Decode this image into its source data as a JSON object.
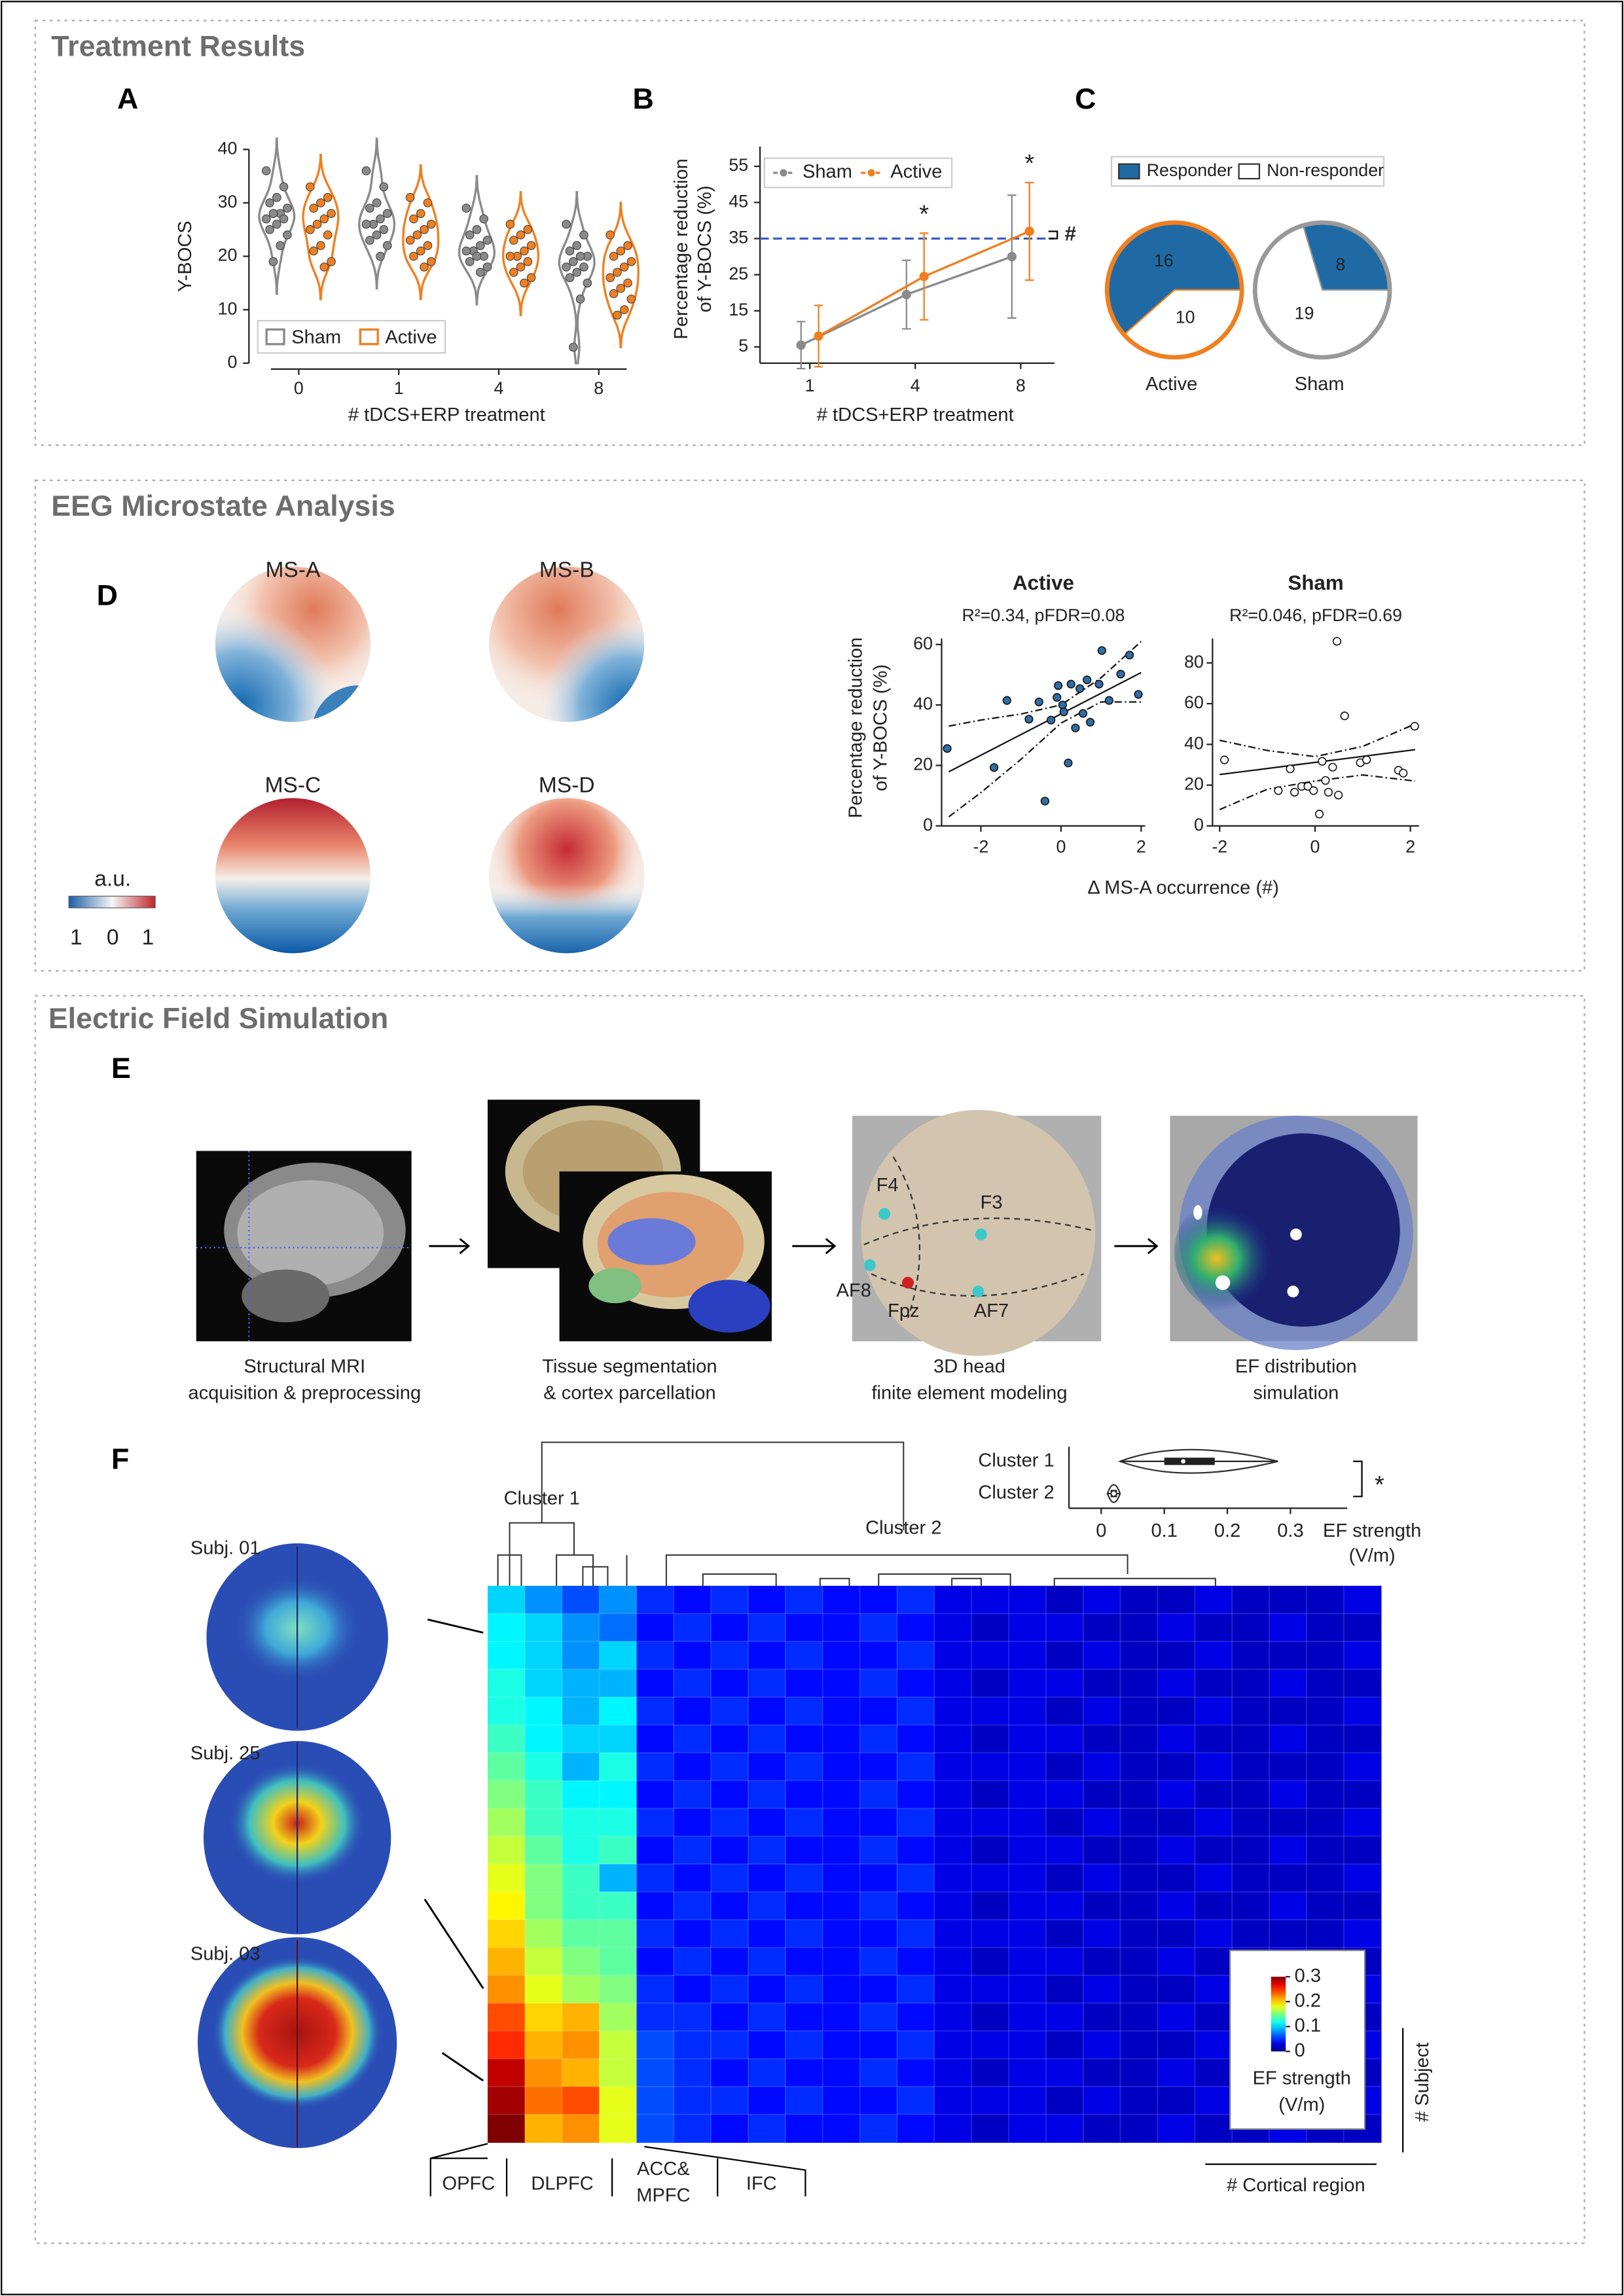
{
  "sections": [
    "Treatment Results",
    "EEG Microstate Analysis",
    "Electric Field Simulation"
  ],
  "panel_letters": [
    "A",
    "B",
    "C",
    "D",
    "E",
    "F"
  ],
  "microstates": {
    "maps": [
      {
        "name": "MS-A",
        "color": "#2b73b8"
      },
      {
        "name": "MS-B",
        "color": "#e0703a"
      },
      {
        "name": "MS-C",
        "color": "#f0b323"
      },
      {
        "name": "MS-D",
        "color": "#8e3c97"
      }
    ],
    "colorbar": {
      "label": "a.u.",
      "ticks": [
        "1",
        "0",
        "1"
      ]
    }
  },
  "pipeline": {
    "steps": [
      [
        "Structural MRI",
        "acquisition & preprocessing"
      ],
      [
        "Tissue segmentation",
        "& cortex parcellation"
      ],
      [
        "3D head",
        "finite element modeling"
      ],
      [
        "EF distribution",
        "simulation"
      ]
    ],
    "electrodes": [
      "F4",
      "F3",
      "AF8",
      "Fpz",
      "AF7"
    ]
  },
  "subjects": [
    "Subj. 01",
    "Subj. 25",
    "Subj. 03"
  ],
  "chart_data": [
    {
      "type": "violin",
      "ylabel": "Y-BOCS",
      "xlabel": "# tDCS+ERP treatment",
      "categories": [
        "0",
        "1",
        "4",
        "8"
      ],
      "ylim": [
        0,
        40
      ],
      "yticks": [
        0,
        10,
        20,
        30,
        40
      ],
      "legend": "lower left",
      "series": [
        {
          "name": "Sham",
          "color": "#8a8a8a",
          "values": [
            [
              36,
              33,
              31,
              30,
              29,
              28,
              28,
              27,
              27,
              26,
              25,
              24,
              22,
              19
            ],
            [
              36,
              33,
              30,
              29,
              28,
              27,
              26,
              26,
              25,
              24,
              23,
              22,
              20
            ],
            [
              29,
              27,
              25,
              24,
              23,
              22,
              21,
              21,
              20,
              20,
              19,
              18,
              17
            ],
            [
              26,
              24,
              22,
              21,
              20,
              20,
              19,
              18,
              18,
              17,
              16,
              15,
              12,
              3
            ]
          ]
        },
        {
          "name": "Active",
          "color": "#f07f1f",
          "values": [
            [
              33,
              31,
              30,
              29,
              28,
              27,
              26,
              25,
              24,
              22,
              21,
              19,
              18
            ],
            [
              31,
              30,
              28,
              27,
              26,
              25,
              24,
              23,
              22,
              21,
              20,
              19,
              18
            ],
            [
              26,
              25,
              24,
              23,
              22,
              21,
              20,
              20,
              19,
              18,
              17,
              16,
              15
            ],
            [
              24,
              22,
              21,
              20,
              19,
              18,
              17,
              16,
              15,
              14,
              13,
              12,
              10,
              9
            ]
          ]
        }
      ]
    },
    {
      "type": "line",
      "ylabel": [
        "Percentage reduction",
        "of Y-BOCS (%)"
      ],
      "xlabel": "# tDCS+ERP treatment",
      "categories": [
        "1",
        "4",
        "8"
      ],
      "ylim": [
        0.5,
        60.5
      ],
      "yticks": [
        5,
        15,
        25,
        35,
        45,
        55
      ],
      "legend": "upper left",
      "threshold": 35,
      "threshold_color": "#3a5fbf",
      "series": [
        {
          "name": "Sham",
          "color": "#8a8a8a",
          "values": [
            5.5,
            19.5,
            30
          ],
          "errors": [
            6.5,
            9.5,
            17
          ]
        },
        {
          "name": "Active",
          "color": "#f07f1f",
          "values": [
            8,
            24.5,
            37
          ],
          "errors": [
            8.5,
            12,
            13.5
          ],
          "markers": [
            null,
            "*",
            "*"
          ]
        }
      ],
      "bracket_label": "#"
    },
    {
      "type": "pie",
      "labels": [
        "Responder",
        "Non-responder"
      ],
      "colors": [
        "#1f6aa5",
        "#ffffff"
      ],
      "pies": [
        {
          "name": "Active",
          "color": "#f07f1f",
          "values": [
            16,
            10
          ]
        },
        {
          "name": "Sham",
          "color": "#999999",
          "values": [
            8,
            19
          ]
        }
      ]
    },
    {
      "type": "scatter",
      "title": "Active",
      "subtitle": "R²=0.34, pFDR=0.08",
      "ylabel": [
        "Percentage reduction",
        "of Y-BOCS (%)"
      ],
      "xlabel": "Δ MS-A occurrence (#)",
      "xlim": [
        -2.98,
        2.1
      ],
      "ylim": [
        0,
        62
      ],
      "xticks": [
        -2,
        0,
        2
      ],
      "yticks": [
        0,
        20,
        40,
        60
      ],
      "color": "#2f6ea5",
      "title_color": "#000000",
      "x": [
        -2.84,
        -1.35,
        -1.67,
        -0.8,
        -0.55,
        -0.4,
        -0.25,
        -0.1,
        -0.07,
        0.04,
        0.07,
        0.25,
        0.18,
        0.47,
        0.55,
        0.36,
        0.73,
        1.02,
        0.95,
        1.2,
        1.49,
        1.71,
        1.93,
        0.65
      ],
      "values": [
        25.6,
        41.5,
        19.3,
        35.3,
        41,
        8.2,
        35,
        42.5,
        46.4,
        40,
        37.7,
        46.9,
        20.8,
        45.4,
        37.2,
        32.4,
        34.3,
        58,
        46.9,
        41.5,
        50.2,
        56.5,
        43.5,
        48.3
      ],
      "fit": {
        "x": [
          -2.8,
          2
        ],
        "y": [
          17.9,
          50.7
        ]
      },
      "ci_x": [
        -2.8,
        -2,
        -1,
        0,
        1,
        2
      ],
      "ci_upper": [
        33,
        35,
        37,
        40,
        49,
        61
      ],
      "ci_lower": [
        3,
        11,
        22,
        34,
        41,
        41
      ]
    },
    {
      "type": "scatter",
      "title": "Sham",
      "subtitle": "R²=0.046, pFDR=0.69",
      "xlim": [
        -2.15,
        2.18
      ],
      "ylim": [
        0,
        92
      ],
      "xticks": [
        -2,
        0,
        2
      ],
      "yticks": [
        0,
        20,
        40,
        60,
        80
      ],
      "color": "#ffffff",
      "title_color": "#8a8a8a",
      "x": [
        -1.9,
        0.46,
        0.62,
        -0.52,
        -0.43,
        -0.28,
        -0.15,
        -0.03,
        0.22,
        0.15,
        0.37,
        0.09,
        0.49,
        -0.77,
        0.95,
        1.08,
        1.75,
        1.85,
        2.09,
        0.28
      ],
      "values": [
        32.4,
        90.6,
        54,
        28,
        16.5,
        19.4,
        19.4,
        17.3,
        22.3,
        31.7,
        28.8,
        5.8,
        15.1,
        17.3,
        31,
        32.4,
        27.3,
        25.9,
        48.9,
        16.5
      ],
      "fit": {
        "x": [
          -2,
          2.1
        ],
        "y": [
          25.2,
          37.4
        ]
      },
      "ci_x": [
        -2,
        -1,
        0,
        1,
        2.1
      ],
      "ci_upper": [
        42,
        37,
        34,
        39,
        50
      ],
      "ci_lower": [
        8,
        18,
        22,
        25,
        22
      ]
    },
    {
      "type": "heatmap",
      "xlabel": "# Cortical region",
      "ylabel": "# Subject",
      "clim": [
        0,
        0.3
      ],
      "cticks": [
        0,
        0.1,
        0.2,
        0.3
      ],
      "colorbar_label": [
        "EF strength",
        "(V/m)"
      ],
      "region_groups": [
        "OPFC",
        "DLPFC",
        [
          "ACC&",
          "MPFC"
        ],
        "IFC"
      ],
      "cluster_labels": [
        "Cluster 1",
        "Cluster 2"
      ],
      "values": [
        [
          0.1,
          0.08,
          0.06,
          0.08,
          0.05,
          0.04,
          0.05,
          0.04,
          0.05,
          0.04,
          0.04,
          0.05,
          0.03,
          0.03,
          0.03,
          0.02,
          0.03,
          0.02,
          0.02,
          0.03,
          0.02,
          0.02,
          0.02,
          0.03
        ],
        [
          0.11,
          0.1,
          0.08,
          0.07,
          0.04,
          0.05,
          0.04,
          0.05,
          0.04,
          0.04,
          0.05,
          0.04,
          0.03,
          0.02,
          0.03,
          0.03,
          0.02,
          0.02,
          0.03,
          0.02,
          0.02,
          0.03,
          0.02,
          0.02
        ],
        [
          0.11,
          0.1,
          0.08,
          0.1,
          0.05,
          0.04,
          0.05,
          0.04,
          0.05,
          0.04,
          0.04,
          0.05,
          0.03,
          0.03,
          0.03,
          0.02,
          0.03,
          0.02,
          0.02,
          0.03,
          0.02,
          0.02,
          0.02,
          0.03
        ],
        [
          0.12,
          0.1,
          0.09,
          0.09,
          0.04,
          0.05,
          0.04,
          0.05,
          0.04,
          0.04,
          0.05,
          0.04,
          0.03,
          0.02,
          0.03,
          0.03,
          0.02,
          0.02,
          0.03,
          0.02,
          0.02,
          0.03,
          0.02,
          0.02
        ],
        [
          0.12,
          0.11,
          0.09,
          0.11,
          0.05,
          0.04,
          0.05,
          0.04,
          0.05,
          0.04,
          0.04,
          0.05,
          0.03,
          0.03,
          0.03,
          0.02,
          0.03,
          0.02,
          0.02,
          0.03,
          0.02,
          0.02,
          0.02,
          0.03
        ],
        [
          0.13,
          0.11,
          0.1,
          0.1,
          0.04,
          0.05,
          0.04,
          0.05,
          0.04,
          0.04,
          0.05,
          0.04,
          0.03,
          0.02,
          0.03,
          0.03,
          0.02,
          0.02,
          0.03,
          0.02,
          0.02,
          0.03,
          0.02,
          0.02
        ],
        [
          0.14,
          0.12,
          0.09,
          0.12,
          0.05,
          0.04,
          0.05,
          0.04,
          0.05,
          0.04,
          0.04,
          0.05,
          0.03,
          0.03,
          0.03,
          0.02,
          0.03,
          0.02,
          0.02,
          0.03,
          0.02,
          0.02,
          0.02,
          0.03
        ],
        [
          0.15,
          0.13,
          0.11,
          0.11,
          0.04,
          0.05,
          0.04,
          0.05,
          0.04,
          0.04,
          0.05,
          0.04,
          0.03,
          0.02,
          0.03,
          0.03,
          0.02,
          0.02,
          0.03,
          0.02,
          0.02,
          0.03,
          0.02,
          0.02
        ],
        [
          0.16,
          0.13,
          0.12,
          0.12,
          0.05,
          0.04,
          0.05,
          0.04,
          0.05,
          0.04,
          0.04,
          0.05,
          0.03,
          0.03,
          0.03,
          0.02,
          0.03,
          0.02,
          0.02,
          0.03,
          0.02,
          0.02,
          0.02,
          0.03
        ],
        [
          0.17,
          0.14,
          0.12,
          0.13,
          0.04,
          0.05,
          0.04,
          0.05,
          0.04,
          0.04,
          0.05,
          0.04,
          0.03,
          0.02,
          0.03,
          0.03,
          0.02,
          0.02,
          0.03,
          0.02,
          0.02,
          0.03,
          0.02,
          0.02
        ],
        [
          0.18,
          0.15,
          0.13,
          0.09,
          0.05,
          0.04,
          0.05,
          0.04,
          0.05,
          0.04,
          0.04,
          0.05,
          0.03,
          0.03,
          0.03,
          0.02,
          0.03,
          0.02,
          0.02,
          0.03,
          0.02,
          0.02,
          0.02,
          0.03
        ],
        [
          0.19,
          0.15,
          0.13,
          0.13,
          0.04,
          0.05,
          0.04,
          0.05,
          0.04,
          0.04,
          0.05,
          0.04,
          0.03,
          0.02,
          0.03,
          0.03,
          0.02,
          0.02,
          0.03,
          0.02,
          0.02,
          0.03,
          0.02,
          0.02
        ],
        [
          0.2,
          0.16,
          0.14,
          0.14,
          0.05,
          0.04,
          0.05,
          0.04,
          0.05,
          0.04,
          0.04,
          0.05,
          0.03,
          0.03,
          0.03,
          0.02,
          0.03,
          0.02,
          0.02,
          0.03,
          0.02,
          0.02,
          0.02,
          0.03
        ],
        [
          0.21,
          0.17,
          0.15,
          0.14,
          0.04,
          0.05,
          0.04,
          0.05,
          0.04,
          0.04,
          0.05,
          0.04,
          0.03,
          0.02,
          0.03,
          0.03,
          0.02,
          0.02,
          0.03,
          0.02,
          0.02,
          0.03,
          0.02,
          0.02
        ],
        [
          0.22,
          0.18,
          0.16,
          0.15,
          0.05,
          0.04,
          0.05,
          0.04,
          0.05,
          0.04,
          0.04,
          0.05,
          0.03,
          0.03,
          0.03,
          0.02,
          0.03,
          0.02,
          0.02,
          0.03,
          0.02,
          0.02,
          0.02,
          0.03
        ],
        [
          0.24,
          0.2,
          0.21,
          0.16,
          0.05,
          0.05,
          0.04,
          0.05,
          0.04,
          0.04,
          0.05,
          0.04,
          0.03,
          0.02,
          0.03,
          0.03,
          0.02,
          0.02,
          0.03,
          0.02,
          0.02,
          0.03,
          0.02,
          0.02
        ],
        [
          0.25,
          0.21,
          0.22,
          0.17,
          0.06,
          0.05,
          0.05,
          0.04,
          0.05,
          0.04,
          0.04,
          0.05,
          0.03,
          0.03,
          0.03,
          0.02,
          0.03,
          0.02,
          0.02,
          0.03,
          0.02,
          0.02,
          0.02,
          0.03
        ],
        [
          0.28,
          0.22,
          0.21,
          0.17,
          0.06,
          0.05,
          0.04,
          0.05,
          0.04,
          0.04,
          0.05,
          0.04,
          0.03,
          0.02,
          0.03,
          0.03,
          0.02,
          0.02,
          0.03,
          0.02,
          0.02,
          0.03,
          0.02,
          0.02
        ],
        [
          0.29,
          0.23,
          0.24,
          0.18,
          0.06,
          0.05,
          0.05,
          0.04,
          0.05,
          0.04,
          0.04,
          0.05,
          0.03,
          0.03,
          0.03,
          0.02,
          0.03,
          0.02,
          0.02,
          0.03,
          0.02,
          0.02,
          0.02,
          0.03
        ],
        [
          0.3,
          0.21,
          0.22,
          0.18,
          0.06,
          0.05,
          0.04,
          0.05,
          0.04,
          0.04,
          0.05,
          0.04,
          0.03,
          0.02,
          0.03,
          0.03,
          0.02,
          0.02,
          0.03,
          0.02,
          0.02,
          0.03,
          0.02,
          0.02
        ]
      ]
    },
    {
      "type": "box",
      "categories": [
        "Cluster 1",
        "Cluster 2"
      ],
      "xlabel": [
        "EF strength",
        "(V/m)"
      ],
      "xlim": [
        -0.051,
        0.39
      ],
      "xticks": [
        0,
        0.1,
        0.2,
        0.3
      ],
      "stats": [
        [
          0.03,
          0.1,
          0.13,
          0.18,
          0.28
        ],
        [
          0.01,
          0.015,
          0.02,
          0.025,
          0.03
        ]
      ],
      "annotation": "*"
    }
  ]
}
